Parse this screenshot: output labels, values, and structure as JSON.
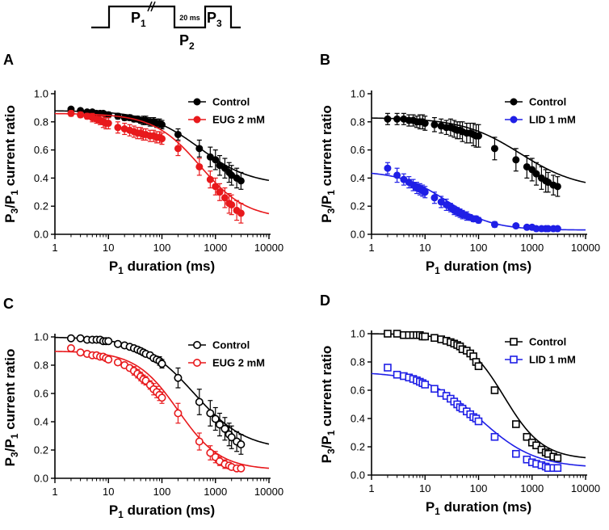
{
  "protocol": {
    "p1_main": "P",
    "p1_sub": "1",
    "p2_main": "P",
    "p2_sub": "2",
    "p3_main": "P",
    "p3_sub": "3",
    "gap_label": "20 ms"
  },
  "chart_data": [
    {
      "panel": "A",
      "type": "scatter",
      "marker": "filled-circle",
      "xscale": "log",
      "xlim": [
        1,
        10000
      ],
      "ylim": [
        0,
        1.0
      ],
      "xticks": [
        "1",
        "10",
        "100",
        "1000",
        "10000"
      ],
      "yticks": [
        "0.0",
        "0.2",
        "0.4",
        "0.6",
        "0.8",
        "1.0"
      ],
      "xlabel": "P1 duration (ms)",
      "ylabel": "P3/P1 current ratio",
      "legend_position": "top-right",
      "series": [
        {
          "name": "Control",
          "color": "#000000",
          "fit": {
            "top": 0.88,
            "bottom": 0.35,
            "x50": 500,
            "n": 0.9
          },
          "x": [
            2,
            3,
            4,
            5,
            6,
            7,
            8,
            9,
            10,
            15,
            20,
            25,
            30,
            35,
            40,
            45,
            50,
            60,
            70,
            80,
            90,
            100,
            200,
            500,
            800,
            1000,
            1200,
            1500,
            1800,
            2000,
            2500,
            3000
          ],
          "y": [
            0.89,
            0.88,
            0.87,
            0.87,
            0.86,
            0.86,
            0.86,
            0.85,
            0.85,
            0.84,
            0.83,
            0.83,
            0.82,
            0.82,
            0.81,
            0.81,
            0.81,
            0.8,
            0.8,
            0.79,
            0.79,
            0.78,
            0.71,
            0.61,
            0.55,
            0.53,
            0.49,
            0.47,
            0.44,
            0.42,
            0.4,
            0.38
          ],
          "err": [
            0.01,
            0.01,
            0.01,
            0.01,
            0.01,
            0.01,
            0.01,
            0.02,
            0.02,
            0.02,
            0.02,
            0.02,
            0.02,
            0.02,
            0.02,
            0.03,
            0.03,
            0.03,
            0.03,
            0.03,
            0.03,
            0.03,
            0.04,
            0.06,
            0.07,
            0.07,
            0.07,
            0.07,
            0.07,
            0.07,
            0.07,
            0.06
          ]
        },
        {
          "name": "EUG 2 mM",
          "color": "#e8191c",
          "fit": {
            "top": 0.86,
            "bottom": 0.11,
            "x50": 520,
            "n": 1.0
          },
          "x": [
            2,
            3,
            4,
            5,
            6,
            7,
            8,
            9,
            10,
            15,
            20,
            25,
            30,
            35,
            40,
            45,
            50,
            60,
            70,
            80,
            90,
            100,
            200,
            500,
            800,
            1000,
            1200,
            1500,
            1800,
            2000,
            2500,
            3000
          ],
          "y": [
            0.86,
            0.85,
            0.84,
            0.83,
            0.82,
            0.81,
            0.8,
            0.79,
            0.79,
            0.76,
            0.75,
            0.74,
            0.73,
            0.72,
            0.72,
            0.71,
            0.71,
            0.7,
            0.7,
            0.69,
            0.69,
            0.68,
            0.61,
            0.48,
            0.39,
            0.34,
            0.3,
            0.26,
            0.22,
            0.21,
            0.17,
            0.15
          ],
          "err": [
            0.02,
            0.02,
            0.02,
            0.03,
            0.03,
            0.03,
            0.04,
            0.04,
            0.04,
            0.04,
            0.04,
            0.04,
            0.04,
            0.04,
            0.04,
            0.04,
            0.04,
            0.04,
            0.04,
            0.04,
            0.04,
            0.04,
            0.05,
            0.06,
            0.06,
            0.06,
            0.06,
            0.07,
            0.07,
            0.07,
            0.07,
            0.07
          ]
        }
      ]
    },
    {
      "panel": "B",
      "type": "scatter",
      "marker": "filled-circle",
      "xscale": "log",
      "xlim": [
        1,
        10000
      ],
      "ylim": [
        0,
        1.0
      ],
      "xticks": [
        "1",
        "10",
        "100",
        "1000",
        "10000"
      ],
      "yticks": [
        "0.0",
        "0.2",
        "0.4",
        "0.6",
        "0.8",
        "1.0"
      ],
      "xlabel": "P1 duration (ms)",
      "ylabel": "P3/P1 current ratio",
      "legend_position": "top-right",
      "series": [
        {
          "name": "Control",
          "color": "#000000",
          "fit": {
            "top": 0.83,
            "bottom": 0.32,
            "x50": 600,
            "n": 0.8
          },
          "x": [
            2,
            3,
            4,
            5,
            6,
            7,
            8,
            9,
            10,
            15,
            20,
            25,
            30,
            35,
            40,
            45,
            50,
            60,
            70,
            80,
            90,
            100,
            200,
            500,
            800,
            1000,
            1200,
            1500,
            1800,
            2000,
            2500,
            3000
          ],
          "y": [
            0.82,
            0.82,
            0.82,
            0.81,
            0.81,
            0.8,
            0.8,
            0.8,
            0.79,
            0.78,
            0.77,
            0.76,
            0.76,
            0.75,
            0.74,
            0.74,
            0.73,
            0.72,
            0.72,
            0.71,
            0.7,
            0.7,
            0.61,
            0.53,
            0.48,
            0.46,
            0.43,
            0.4,
            0.38,
            0.37,
            0.35,
            0.34
          ],
          "err": [
            0.04,
            0.04,
            0.04,
            0.04,
            0.04,
            0.04,
            0.05,
            0.05,
            0.05,
            0.05,
            0.05,
            0.05,
            0.06,
            0.06,
            0.06,
            0.06,
            0.07,
            0.07,
            0.07,
            0.08,
            0.08,
            0.08,
            0.08,
            0.08,
            0.08,
            0.08,
            0.08,
            0.08,
            0.08,
            0.07,
            0.07,
            0.07
          ]
        },
        {
          "name": "LID 1 mM",
          "color": "#1f1fe6",
          "fit": {
            "top": 0.45,
            "bottom": 0.03,
            "x50": 25,
            "n": 1.0
          },
          "x": [
            2,
            3,
            4,
            5,
            6,
            7,
            8,
            9,
            10,
            15,
            20,
            25,
            30,
            35,
            40,
            45,
            50,
            60,
            70,
            80,
            90,
            100,
            200,
            500,
            800,
            1000,
            1200,
            1500,
            1800,
            2000,
            2500,
            3000
          ],
          "y": [
            0.47,
            0.42,
            0.39,
            0.37,
            0.35,
            0.33,
            0.32,
            0.31,
            0.3,
            0.26,
            0.23,
            0.21,
            0.19,
            0.17,
            0.16,
            0.15,
            0.14,
            0.13,
            0.12,
            0.11,
            0.11,
            0.1,
            0.07,
            0.06,
            0.05,
            0.05,
            0.04,
            0.04,
            0.04,
            0.04,
            0.04,
            0.04
          ],
          "err": [
            0.04,
            0.05,
            0.04,
            0.04,
            0.04,
            0.04,
            0.04,
            0.04,
            0.04,
            0.04,
            0.04,
            0.04,
            0.03,
            0.03,
            0.03,
            0.03,
            0.03,
            0.03,
            0.02,
            0.02,
            0.02,
            0.02,
            0.02,
            0.01,
            0.01,
            0.01,
            0.01,
            0.01,
            0.01,
            0.01,
            0.01,
            0.01
          ]
        }
      ]
    },
    {
      "panel": "C",
      "type": "scatter",
      "marker": "open-circle",
      "xscale": "log",
      "xlim": [
        1,
        10000
      ],
      "ylim": [
        0,
        1.0
      ],
      "xticks": [
        "1",
        "10",
        "100",
        "1000",
        "10000"
      ],
      "yticks": [
        "0.0",
        "0.2",
        "0.4",
        "0.6",
        "0.8",
        "1.0"
      ],
      "xlabel": "P1 duration (ms)",
      "ylabel": "P3/P1 current ratio",
      "legend_position": "top-right",
      "series": [
        {
          "name": "Control",
          "color": "#000000",
          "fit": {
            "top": 1.0,
            "bottom": 0.2,
            "x50": 400,
            "n": 0.9
          },
          "x": [
            2,
            3,
            4,
            5,
            6,
            7,
            8,
            9,
            10,
            15,
            20,
            25,
            30,
            35,
            40,
            45,
            50,
            60,
            70,
            80,
            90,
            100,
            200,
            500,
            800,
            1000,
            1200,
            1500,
            1800,
            2000,
            2500,
            3000
          ],
          "y": [
            0.99,
            0.99,
            0.98,
            0.98,
            0.98,
            0.98,
            0.97,
            0.97,
            0.97,
            0.95,
            0.94,
            0.93,
            0.92,
            0.91,
            0.9,
            0.89,
            0.88,
            0.87,
            0.85,
            0.84,
            0.83,
            0.81,
            0.71,
            0.54,
            0.46,
            0.42,
            0.38,
            0.35,
            0.31,
            0.29,
            0.26,
            0.24
          ],
          "err": [
            0.01,
            0.01,
            0.01,
            0.01,
            0.01,
            0.01,
            0.01,
            0.01,
            0.01,
            0.01,
            0.01,
            0.01,
            0.01,
            0.02,
            0.02,
            0.02,
            0.02,
            0.02,
            0.02,
            0.02,
            0.03,
            0.03,
            0.07,
            0.09,
            0.09,
            0.08,
            0.08,
            0.08,
            0.08,
            0.08,
            0.07,
            0.07
          ]
        },
        {
          "name": "EUG 2 mM",
          "color": "#e8191c",
          "fit": {
            "top": 0.9,
            "bottom": 0.06,
            "x50": 200,
            "n": 1.1
          },
          "x": [
            2,
            3,
            4,
            5,
            6,
            7,
            8,
            9,
            10,
            15,
            20,
            25,
            30,
            35,
            40,
            45,
            50,
            60,
            70,
            80,
            90,
            100,
            200,
            500,
            800,
            1000,
            1200,
            1500,
            1800,
            2000,
            2500,
            3000
          ],
          "y": [
            0.92,
            0.89,
            0.88,
            0.87,
            0.87,
            0.86,
            0.86,
            0.85,
            0.84,
            0.82,
            0.8,
            0.78,
            0.76,
            0.74,
            0.72,
            0.7,
            0.69,
            0.66,
            0.63,
            0.61,
            0.59,
            0.57,
            0.46,
            0.26,
            0.18,
            0.15,
            0.12,
            0.1,
            0.09,
            0.08,
            0.07,
            0.07
          ],
          "err": [
            0.02,
            0.02,
            0.02,
            0.02,
            0.02,
            0.02,
            0.02,
            0.02,
            0.02,
            0.02,
            0.02,
            0.02,
            0.03,
            0.03,
            0.03,
            0.03,
            0.03,
            0.03,
            0.04,
            0.04,
            0.04,
            0.04,
            0.07,
            0.06,
            0.05,
            0.04,
            0.03,
            0.03,
            0.02,
            0.02,
            0.02,
            0.02
          ]
        }
      ]
    },
    {
      "panel": "D",
      "type": "scatter",
      "marker": "open-square",
      "xscale": "log",
      "xlim": [
        1,
        10000
      ],
      "ylim": [
        0,
        1.0
      ],
      "xticks": [
        "1",
        "10",
        "100",
        "1000",
        "10000"
      ],
      "yticks": [
        "0.0",
        "0.2",
        "0.4",
        "0.6",
        "0.8",
        "1.0"
      ],
      "xlabel": "P1 duration (ms)",
      "ylabel": "P3/P1 current ratio",
      "legend_position": "top-right",
      "series": [
        {
          "name": "Control",
          "color": "#000000",
          "fit": {
            "top": 1.0,
            "bottom": 0.11,
            "x50": 300,
            "n": 1.2
          },
          "x": [
            2,
            3,
            4,
            5,
            6,
            7,
            8,
            9,
            10,
            15,
            20,
            25,
            30,
            35,
            40,
            45,
            50,
            60,
            70,
            80,
            90,
            100,
            200,
            500,
            800,
            1000,
            1200,
            1500,
            1800,
            2000,
            2500,
            3000
          ],
          "y": [
            1.0,
            1.0,
            0.99,
            0.99,
            0.99,
            0.99,
            0.99,
            0.98,
            0.98,
            0.97,
            0.96,
            0.95,
            0.94,
            0.93,
            0.92,
            0.91,
            0.89,
            0.88,
            0.86,
            0.84,
            0.8,
            0.77,
            0.6,
            0.36,
            0.27,
            0.23,
            0.21,
            0.18,
            0.16,
            0.15,
            0.13,
            0.12
          ],
          "err": [
            0.01,
            0.01,
            0.01,
            0.01,
            0.01,
            0.01,
            0.01,
            0.01,
            0.01,
            0.01,
            0.01,
            0.01,
            0.01,
            0.01,
            0.01,
            0.01,
            0.01,
            0.01,
            0.01,
            0.01,
            0.02,
            0.02,
            0.02,
            0.02,
            0.02,
            0.02,
            0.02,
            0.02,
            0.02,
            0.02,
            0.02,
            0.02
          ]
        },
        {
          "name": "LID 1 mM",
          "color": "#1f1fe6",
          "fit": {
            "top": 0.73,
            "bottom": 0.05,
            "x50": 110,
            "n": 0.85
          },
          "x": [
            2,
            3,
            4,
            5,
            6,
            7,
            8,
            9,
            10,
            15,
            20,
            25,
            30,
            35,
            40,
            45,
            50,
            60,
            70,
            80,
            90,
            100,
            200,
            500,
            800,
            1000,
            1200,
            1500,
            1800,
            2000,
            2500,
            3000
          ],
          "y": [
            0.76,
            0.71,
            0.7,
            0.69,
            0.68,
            0.67,
            0.66,
            0.65,
            0.64,
            0.61,
            0.58,
            0.56,
            0.54,
            0.52,
            0.5,
            0.48,
            0.47,
            0.45,
            0.43,
            0.41,
            0.4,
            0.38,
            0.27,
            0.15,
            0.11,
            0.09,
            0.08,
            0.07,
            0.06,
            0.05,
            0.05,
            0.05
          ],
          "err": [
            0.01,
            0.01,
            0.01,
            0.01,
            0.01,
            0.02,
            0.02,
            0.02,
            0.02,
            0.02,
            0.02,
            0.02,
            0.02,
            0.02,
            0.02,
            0.02,
            0.02,
            0.02,
            0.02,
            0.02,
            0.02,
            0.02,
            0.02,
            0.02,
            0.02,
            0.02,
            0.02,
            0.02,
            0.02,
            0.02,
            0.02,
            0.02
          ]
        }
      ]
    }
  ]
}
